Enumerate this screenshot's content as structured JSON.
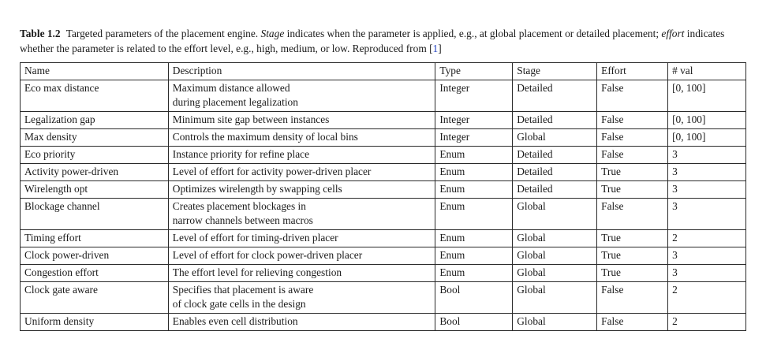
{
  "caption": {
    "label": "Table 1.2",
    "part1": "Targeted parameters of the placement engine. ",
    "stage_word": "Stage",
    "part2": " indicates when the parameter is applied, e.g., at global placement or detailed placement; ",
    "effort_word": "effort",
    "part3": " indicates whether the parameter is related to the effort level, e.g., high, medium, or low. Reproduced from [",
    "ref": "1",
    "part4": "]"
  },
  "table": {
    "headers": [
      "Name",
      "Description",
      "Type",
      "Stage",
      "Effort",
      "# val"
    ],
    "rows": [
      {
        "name": "Eco max distance",
        "desc": [
          "Maximum distance allowed",
          "during placement legalization"
        ],
        "type": "Integer",
        "stage": "Detailed",
        "effort": "False",
        "val": "[0, 100]"
      },
      {
        "name": "Legalization gap",
        "desc": [
          "Minimum site gap between instances"
        ],
        "type": "Integer",
        "stage": "Detailed",
        "effort": "False",
        "val": "[0, 100]"
      },
      {
        "name": "Max density",
        "desc": [
          "Controls the maximum density of local bins"
        ],
        "type": "Integer",
        "stage": "Global",
        "effort": "False",
        "val": "[0, 100]"
      },
      {
        "name": "Eco priority",
        "desc": [
          "Instance priority for refine place"
        ],
        "type": "Enum",
        "stage": "Detailed",
        "effort": "False",
        "val": "3"
      },
      {
        "name": "Activity power-driven",
        "desc": [
          "Level of effort for activity power-driven placer"
        ],
        "type": "Enum",
        "stage": "Detailed",
        "effort": "True",
        "val": "3"
      },
      {
        "name": "Wirelength opt",
        "desc": [
          "Optimizes wirelength by swapping cells"
        ],
        "type": "Enum",
        "stage": "Detailed",
        "effort": "True",
        "val": "3"
      },
      {
        "name": "Blockage channel",
        "desc": [
          "Creates placement blockages in",
          "narrow channels between macros"
        ],
        "type": "Enum",
        "stage": "Global",
        "effort": "False",
        "val": "3"
      },
      {
        "name": "Timing effort",
        "desc": [
          "Level of effort for timing-driven placer"
        ],
        "type": "Enum",
        "stage": "Global",
        "effort": "True",
        "val": "2"
      },
      {
        "name": "Clock power-driven",
        "desc": [
          "Level of effort for clock power-driven placer"
        ],
        "type": "Enum",
        "stage": "Global",
        "effort": "True",
        "val": "3"
      },
      {
        "name": "Congestion effort",
        "desc": [
          "The effort level for relieving congestion"
        ],
        "type": "Enum",
        "stage": "Global",
        "effort": "True",
        "val": "3"
      },
      {
        "name": "Clock gate aware",
        "desc": [
          "Specifies that placement is aware",
          "of clock gate cells in the design"
        ],
        "type": "Bool",
        "stage": "Global",
        "effort": "False",
        "val": "2"
      },
      {
        "name": "Uniform density",
        "desc": [
          "Enables even cell distribution"
        ],
        "type": "Bool",
        "stage": "Global",
        "effort": "False",
        "val": "2"
      }
    ]
  }
}
